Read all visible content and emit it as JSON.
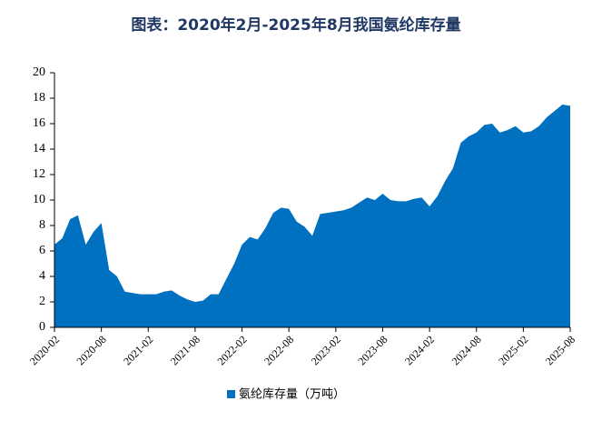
{
  "chart_data": {
    "type": "area",
    "title": "图表：2020年2月-2025年8月我国氨纶库存量",
    "x": [
      "2020-02",
      "2020-03",
      "2020-04",
      "2020-05",
      "2020-06",
      "2020-07",
      "2020-08",
      "2020-09",
      "2020-10",
      "2020-11",
      "2020-12",
      "2021-01",
      "2021-02",
      "2021-03",
      "2021-04",
      "2021-05",
      "2021-06",
      "2021-07",
      "2021-08",
      "2021-09",
      "2021-10",
      "2021-11",
      "2021-12",
      "2022-01",
      "2022-02",
      "2022-03",
      "2022-04",
      "2022-05",
      "2022-06",
      "2022-07",
      "2022-08",
      "2022-09",
      "2022-10",
      "2022-11",
      "2022-12",
      "2023-01",
      "2023-02",
      "2023-03",
      "2023-04",
      "2023-05",
      "2023-06",
      "2023-07",
      "2023-08",
      "2023-09",
      "2023-10",
      "2023-11",
      "2023-12",
      "2024-01",
      "2024-02",
      "2024-03",
      "2024-04",
      "2024-05",
      "2024-06",
      "2024-07",
      "2024-08",
      "2024-09",
      "2024-10",
      "2024-11",
      "2024-12",
      "2025-01",
      "2025-02",
      "2025-03",
      "2025-04",
      "2025-05",
      "2025-06",
      "2025-07",
      "2025-08"
    ],
    "series": [
      {
        "name": "氨纶库存量（万吨）",
        "color": "#0070c0",
        "values": [
          6.5,
          7.0,
          8.5,
          8.8,
          6.5,
          7.5,
          8.2,
          4.5,
          4.0,
          2.8,
          2.7,
          2.6,
          2.6,
          2.6,
          2.8,
          2.9,
          2.5,
          2.2,
          2.0,
          2.1,
          2.6,
          2.6,
          3.8,
          5.0,
          6.5,
          7.1,
          6.9,
          7.8,
          9.0,
          9.4,
          9.3,
          8.3,
          7.9,
          7.2,
          8.9,
          9.0,
          9.1,
          9.2,
          9.4,
          9.8,
          10.2,
          10.0,
          10.5,
          10.0,
          9.9,
          9.9,
          10.1,
          10.2,
          9.5,
          10.3,
          11.5,
          12.5,
          14.5,
          15.0,
          15.3,
          15.9,
          16.0,
          15.3,
          15.5,
          15.8,
          15.3,
          15.4,
          15.8,
          16.5,
          17.0,
          17.5,
          17.4
        ]
      }
    ],
    "xticks": [
      "2020-02",
      "2020-08",
      "2021-02",
      "2021-08",
      "2022-02",
      "2022-08",
      "2023-02",
      "2023-08",
      "2024-02",
      "2024-08",
      "2025-02",
      "2025-08"
    ],
    "ylim": [
      0,
      20
    ],
    "yticks": [
      0,
      2,
      4,
      6,
      8,
      10,
      12,
      14,
      16,
      18,
      20
    ],
    "grid": false
  }
}
